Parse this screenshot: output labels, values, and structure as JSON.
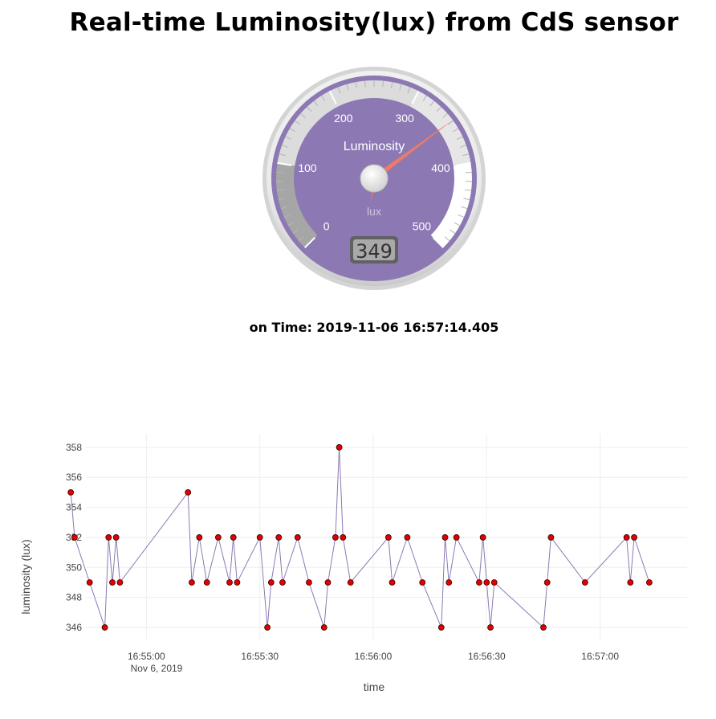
{
  "header": {
    "title": "Real-time Luminosity(lux) from CdS sensor"
  },
  "gauge": {
    "label": "Luminosity",
    "units": "lux",
    "value": 349,
    "value_display": "349",
    "min": 0,
    "max": 500,
    "ticks": [
      "0",
      "100",
      "200",
      "300",
      "400",
      "500"
    ],
    "colors": {
      "plate": "#8c79b3",
      "band_low": "#a6a6a6",
      "band_mid": "#dcdcdc",
      "band_high": "#ffffff",
      "needle": "#f07a62"
    }
  },
  "timestamp": {
    "text": "on Time: 2019-11-06 16:57:14.405"
  },
  "chart_data": {
    "type": "scatter",
    "mode": "lines+markers",
    "xlabel": "time",
    "ylabel": "luminosity (lux)",
    "x_ticks": [
      "16:55:00",
      "16:55:30",
      "16:56:00",
      "16:56:30",
      "16:57:00"
    ],
    "x_tick_secondary": "Nov 6, 2019",
    "y_ticks": [
      "346",
      "348",
      "350",
      "352",
      "354",
      "356",
      "358"
    ],
    "xlim": [
      "16:54:44",
      "16:57:23"
    ],
    "ylim": [
      345.2,
      358.9
    ],
    "grid": true,
    "line_color": "#8c79b3",
    "marker_color": "#e00000",
    "series": [
      {
        "x": [
          "16:54:40",
          "16:54:41",
          "16:54:45",
          "16:54:49",
          "16:54:50",
          "16:54:51",
          "16:54:52",
          "16:54:53",
          "16:55:11",
          "16:55:12",
          "16:55:14",
          "16:55:16",
          "16:55:19",
          "16:55:22",
          "16:55:23",
          "16:55:24",
          "16:55:30",
          "16:55:32",
          "16:55:33",
          "16:55:35",
          "16:55:36",
          "16:55:40",
          "16:55:43",
          "16:55:47",
          "16:55:48",
          "16:55:50",
          "16:55:51",
          "16:55:52",
          "16:55:54",
          "16:56:04",
          "16:56:05",
          "16:56:09",
          "16:56:13",
          "16:56:18",
          "16:56:19",
          "16:56:20",
          "16:56:22",
          "16:56:28",
          "16:56:29",
          "16:56:30",
          "16:56:31",
          "16:56:32",
          "16:56:45",
          "16:56:46",
          "16:56:47",
          "16:56:56",
          "16:57:07",
          "16:57:08",
          "16:57:09",
          "16:57:13"
        ],
        "y": [
          355,
          352,
          349,
          346,
          352,
          349,
          352,
          349,
          355,
          349,
          352,
          349,
          352,
          349,
          352,
          349,
          352,
          346,
          349,
          352,
          349,
          352,
          349,
          346,
          349,
          352,
          358,
          352,
          349,
          352,
          349,
          352,
          349,
          346,
          352,
          349,
          352,
          349,
          352,
          349,
          346,
          349,
          346,
          349,
          352,
          349,
          352,
          349,
          352,
          349
        ]
      }
    ]
  }
}
